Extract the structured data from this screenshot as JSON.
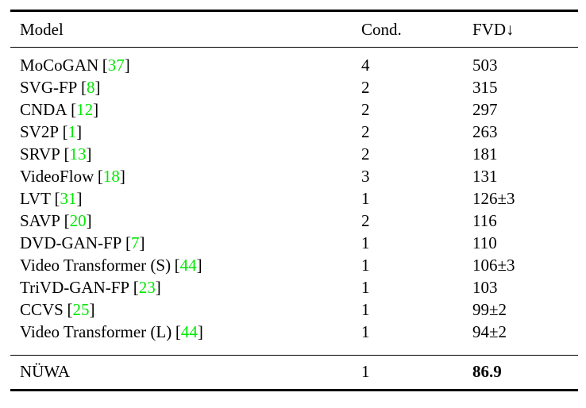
{
  "table": {
    "headers": [
      "Model",
      "Cond.",
      "FVD↓"
    ],
    "citation_brackets": [
      "[",
      "]"
    ],
    "rows": [
      {
        "model": "MoCoGAN",
        "cite": "37",
        "cond": "4",
        "fvd": "503"
      },
      {
        "model": "SVG-FP",
        "cite": "8",
        "cond": "2",
        "fvd": "315"
      },
      {
        "model": "CNDA",
        "cite": "12",
        "cond": "2",
        "fvd": "297"
      },
      {
        "model": "SV2P",
        "cite": "1",
        "cond": "2",
        "fvd": "263"
      },
      {
        "model": "SRVP",
        "cite": "13",
        "cond": "2",
        "fvd": "181"
      },
      {
        "model": "VideoFlow",
        "cite": "18",
        "cond": "3",
        "fvd": "131"
      },
      {
        "model": "LVT",
        "cite": "31",
        "cond": "1",
        "fvd": "126±3"
      },
      {
        "model": "SAVP",
        "cite": "20",
        "cond": "2",
        "fvd": "116"
      },
      {
        "model": "DVD-GAN-FP",
        "cite": "7",
        "cond": "1",
        "fvd": "110"
      },
      {
        "model": "Video Transformer (S)",
        "cite": "44",
        "cond": "1",
        "fvd": "106±3"
      },
      {
        "model": "TriVD-GAN-FP",
        "cite": "23",
        "cond": "1",
        "fvd": "103"
      },
      {
        "model": "CCVS",
        "cite": "25",
        "cond": "1",
        "fvd": "99±2"
      },
      {
        "model": "Video Transformer (L)",
        "cite": "44",
        "cond": "1",
        "fvd": "94±2"
      }
    ],
    "final_row": {
      "model": "NÜWA",
      "cite": "",
      "cond": "1",
      "fvd": "86.9",
      "fvd_bold": true
    },
    "colors": {
      "citation": "#00E800",
      "text": "#000000",
      "rule": "#000000",
      "background": "#ffffff"
    }
  }
}
